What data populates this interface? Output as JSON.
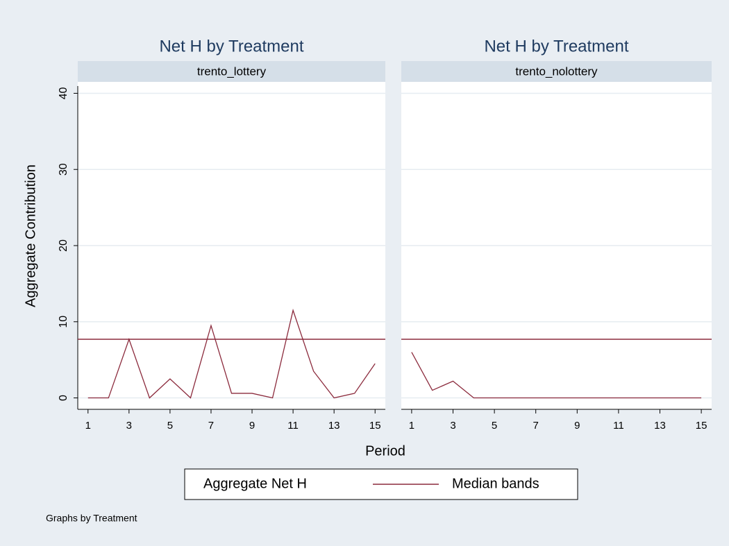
{
  "chart_data": [
    {
      "type": "line",
      "title": "Net H by Treatment",
      "subtitle": "trento_lottery",
      "x": [
        1,
        2,
        3,
        4,
        5,
        6,
        7,
        8,
        9,
        10,
        11,
        12,
        13,
        14,
        15
      ],
      "series": [
        {
          "name": "Aggregate Net H",
          "color": "#8b2a3c",
          "values": [
            0,
            0,
            7.7,
            0,
            2.5,
            0,
            9.5,
            0.6,
            0.6,
            0,
            11.5,
            3.5,
            0,
            0.6,
            4.5
          ]
        }
      ],
      "reference_lines": [
        {
          "name": "Median bands",
          "color": "#8b2a3c",
          "value": 7.7
        }
      ],
      "xlim": [
        0.5,
        15.5
      ],
      "xticks": [
        1,
        3,
        5,
        7,
        9,
        11,
        13,
        15
      ],
      "ylim": [
        -1.5,
        41.5
      ],
      "yticks": [
        0,
        10,
        20,
        30,
        40
      ],
      "grid": true
    },
    {
      "type": "line",
      "title": "Net H by Treatment",
      "subtitle": "trento_nolottery",
      "x": [
        1,
        2,
        3,
        4,
        5,
        6,
        7,
        8,
        9,
        10,
        11,
        12,
        13,
        14,
        15
      ],
      "series": [
        {
          "color": "#8b2a3c",
          "values": [
            6,
            1,
            2.2,
            0,
            0,
            0,
            0,
            0,
            0,
            0,
            0,
            0,
            0,
            0,
            0
          ]
        }
      ],
      "reference_lines": [
        {
          "color": "#8b2a3c",
          "value": 7.7
        }
      ],
      "xlim": [
        0.5,
        15.5
      ],
      "xticks": [
        1,
        3,
        5,
        7,
        9,
        11,
        13,
        15
      ],
      "ylim": [
        -1.5,
        41.5
      ],
      "yticks": [
        0,
        10,
        20,
        30,
        40
      ],
      "grid": true
    }
  ],
  "ytitle": "Aggregate Contribution",
  "xtitle": "Period",
  "note": "Graphs by Treatment"
}
